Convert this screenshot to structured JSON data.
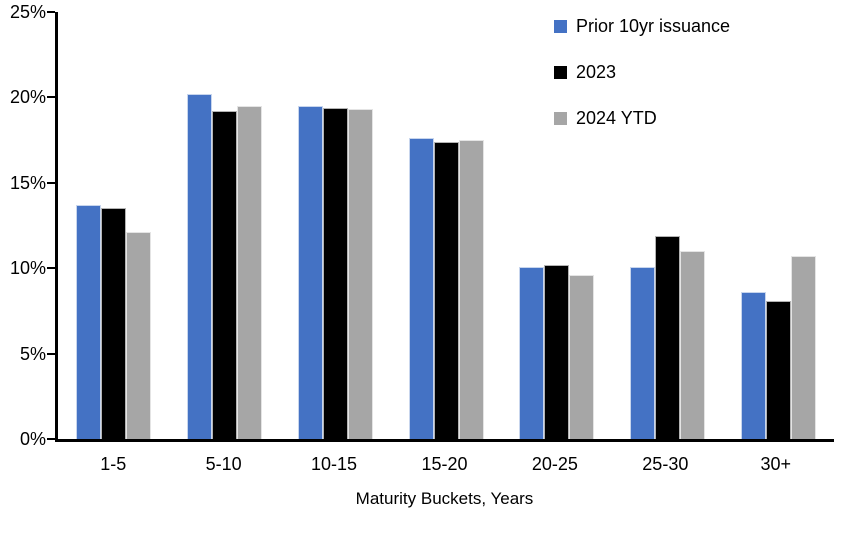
{
  "chart_data": {
    "type": "bar",
    "xlabel": "Maturity Buckets, Years",
    "ylim": [
      0,
      25
    ],
    "yticks": [
      0,
      5,
      10,
      15,
      20,
      25
    ],
    "ytick_labels": [
      "0%",
      "5%",
      "10%",
      "15%",
      "20%",
      "25%"
    ],
    "categories": [
      "1-5",
      "5-10",
      "10-15",
      "15-20",
      "20-25",
      "25-30",
      "30+"
    ],
    "series": [
      {
        "name": "Prior 10yr issuance",
        "color": "#4472C4",
        "values": [
          13.7,
          20.2,
          19.5,
          17.6,
          10.1,
          10.1,
          8.6
        ]
      },
      {
        "name": "2023",
        "color": "#000000",
        "values": [
          13.5,
          19.2,
          19.4,
          17.4,
          10.2,
          11.9,
          8.1
        ]
      },
      {
        "name": "2024 YTD",
        "color": "#A6A6A6",
        "values": [
          12.1,
          19.5,
          19.3,
          17.5,
          9.6,
          11.0,
          10.7
        ]
      }
    ],
    "legend_position": "top-right",
    "grid": false,
    "axis_color": "#000000",
    "background_color": "#ffffff"
  }
}
